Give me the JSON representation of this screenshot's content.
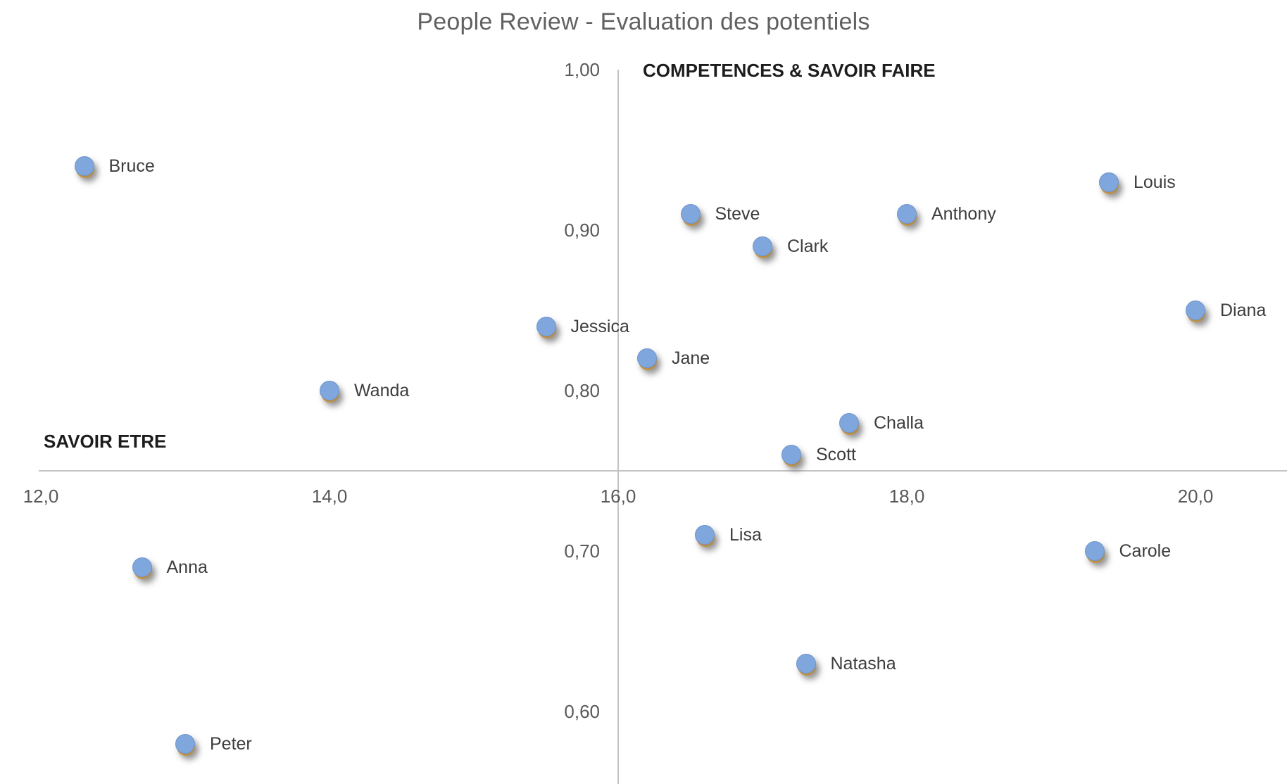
{
  "chart_data": {
    "type": "scatter",
    "title": "People Review - Evaluation des potentiels",
    "x_axis_label": "SAVOIR ETRE",
    "y_axis_label": "COMPETENCES & SAVOIR FAIRE",
    "x_ticks": [
      {
        "value": 12.0,
        "label": "12,0"
      },
      {
        "value": 14.0,
        "label": "14,0"
      },
      {
        "value": 16.0,
        "label": "16,0"
      },
      {
        "value": 18.0,
        "label": "18,0"
      },
      {
        "value": 20.0,
        "label": "20,0"
      }
    ],
    "y_ticks": [
      {
        "value": 1.0,
        "label": "1,00"
      },
      {
        "value": 0.9,
        "label": "0,90"
      },
      {
        "value": 0.8,
        "label": "0,80"
      },
      {
        "value": 0.7,
        "label": "0,70"
      },
      {
        "value": 0.6,
        "label": "0,60"
      }
    ],
    "x_range": [
      12.0,
      20.0
    ],
    "y_range": [
      0.6,
      1.0
    ],
    "axes_cross_at": {
      "x": 16.0,
      "y": 0.75
    },
    "grid": "off",
    "legend": "none",
    "marker_color": "#7fa7dd",
    "points": [
      {
        "name": "Bruce",
        "x": 12.3,
        "y": 0.94
      },
      {
        "name": "Anna",
        "x": 12.7,
        "y": 0.69
      },
      {
        "name": "Peter",
        "x": 13.0,
        "y": 0.58
      },
      {
        "name": "Wanda",
        "x": 14.0,
        "y": 0.8
      },
      {
        "name": "Jessica",
        "x": 15.5,
        "y": 0.84
      },
      {
        "name": "Jane",
        "x": 16.2,
        "y": 0.82
      },
      {
        "name": "Steve",
        "x": 16.5,
        "y": 0.91
      },
      {
        "name": "Lisa",
        "x": 16.6,
        "y": 0.71
      },
      {
        "name": "Clark",
        "x": 17.0,
        "y": 0.89
      },
      {
        "name": "Scott",
        "x": 17.2,
        "y": 0.76
      },
      {
        "name": "Natasha",
        "x": 17.3,
        "y": 0.63
      },
      {
        "name": "Challa",
        "x": 17.6,
        "y": 0.78
      },
      {
        "name": "Anthony",
        "x": 18.0,
        "y": 0.91
      },
      {
        "name": "Carole",
        "x": 19.3,
        "y": 0.7
      },
      {
        "name": "Louis",
        "x": 19.4,
        "y": 0.93
      },
      {
        "name": "Diana",
        "x": 20.0,
        "y": 0.85
      }
    ]
  }
}
